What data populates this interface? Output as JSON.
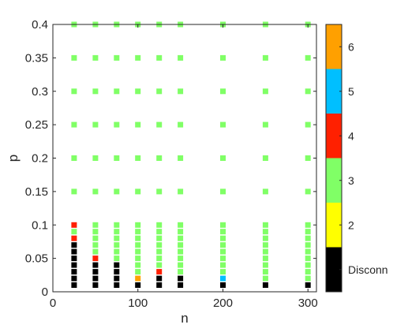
{
  "chart_data": {
    "type": "scatter",
    "xlabel": "n",
    "ylabel": "p",
    "xlim": [
      0,
      310
    ],
    "ylim": [
      0,
      0.4
    ],
    "xticks": [
      0,
      100,
      200,
      300
    ],
    "xtick_labels": [
      "0",
      "100",
      "200",
      "300"
    ],
    "yticks": [
      0,
      0.05,
      0.1,
      0.15,
      0.2,
      0.25,
      0.3,
      0.35,
      0.4
    ],
    "ytick_labels": [
      "0",
      "0.05",
      "0.1",
      "0.15",
      "0.2",
      "0.25",
      "0.3",
      "0.35",
      "0.4"
    ],
    "grid": false,
    "marker": "square",
    "colorbar": {
      "categories": [
        "Disconn",
        "2",
        "3",
        "4",
        "5",
        "6"
      ],
      "colors": {
        "Disconn": "#000000",
        "2": "#ffff00",
        "3": "#80ff66",
        "4": "#ff2000",
        "5": "#00bfff",
        "6": "#ffa000"
      }
    },
    "n_values": [
      25,
      50,
      75,
      100,
      125,
      150,
      200,
      250,
      300
    ],
    "p_values": [
      0.01,
      0.02,
      0.03,
      0.04,
      0.05,
      0.06,
      0.07,
      0.08,
      0.09,
      0.1,
      0.15,
      0.2,
      0.25,
      0.3,
      0.35,
      0.4
    ],
    "grid_values": [
      [
        "Disconn",
        "Disconn",
        "Disconn",
        "Disconn",
        "Disconn",
        "Disconn",
        "Disconn",
        "Disconn",
        "Disconn"
      ],
      [
        "Disconn",
        "Disconn",
        "Disconn",
        "6",
        "Disconn",
        "Disconn",
        "5",
        "3",
        "3"
      ],
      [
        "Disconn",
        "Disconn",
        "Disconn",
        "3",
        "4",
        "3",
        "3",
        "3",
        "3"
      ],
      [
        "Disconn",
        "Disconn",
        "Disconn",
        "3",
        "3",
        "3",
        "3",
        "3",
        "3"
      ],
      [
        "Disconn",
        "4",
        "3",
        "3",
        "3",
        "3",
        "3",
        "3",
        "3"
      ],
      [
        "Disconn",
        "3",
        "3",
        "3",
        "3",
        "3",
        "3",
        "3",
        "3"
      ],
      [
        "Disconn",
        "3",
        "3",
        "3",
        "3",
        "3",
        "3",
        "3",
        "3"
      ],
      [
        "4",
        "3",
        "3",
        "3",
        "3",
        "3",
        "3",
        "3",
        "3"
      ],
      [
        "3",
        "3",
        "3",
        "3",
        "3",
        "3",
        "3",
        "3",
        "3"
      ],
      [
        "4",
        "3",
        "3",
        "3",
        "3",
        "3",
        "3",
        "3",
        "3"
      ],
      [
        "3",
        "3",
        "3",
        "3",
        "3",
        "3",
        "3",
        "3",
        "3"
      ],
      [
        "3",
        "3",
        "3",
        "3",
        "3",
        "3",
        "3",
        "3",
        "3"
      ],
      [
        "3",
        "3",
        "3",
        "3",
        "3",
        "3",
        "3",
        "3",
        "3"
      ],
      [
        "3",
        "3",
        "3",
        "3",
        "3",
        "3",
        "3",
        "3",
        "3"
      ],
      [
        "3",
        "3",
        "3",
        "3",
        "3",
        "3",
        "3",
        "3",
        "3"
      ],
      [
        "3",
        "3",
        "3",
        "3",
        "3",
        "3",
        "3",
        "3",
        "3"
      ]
    ]
  }
}
